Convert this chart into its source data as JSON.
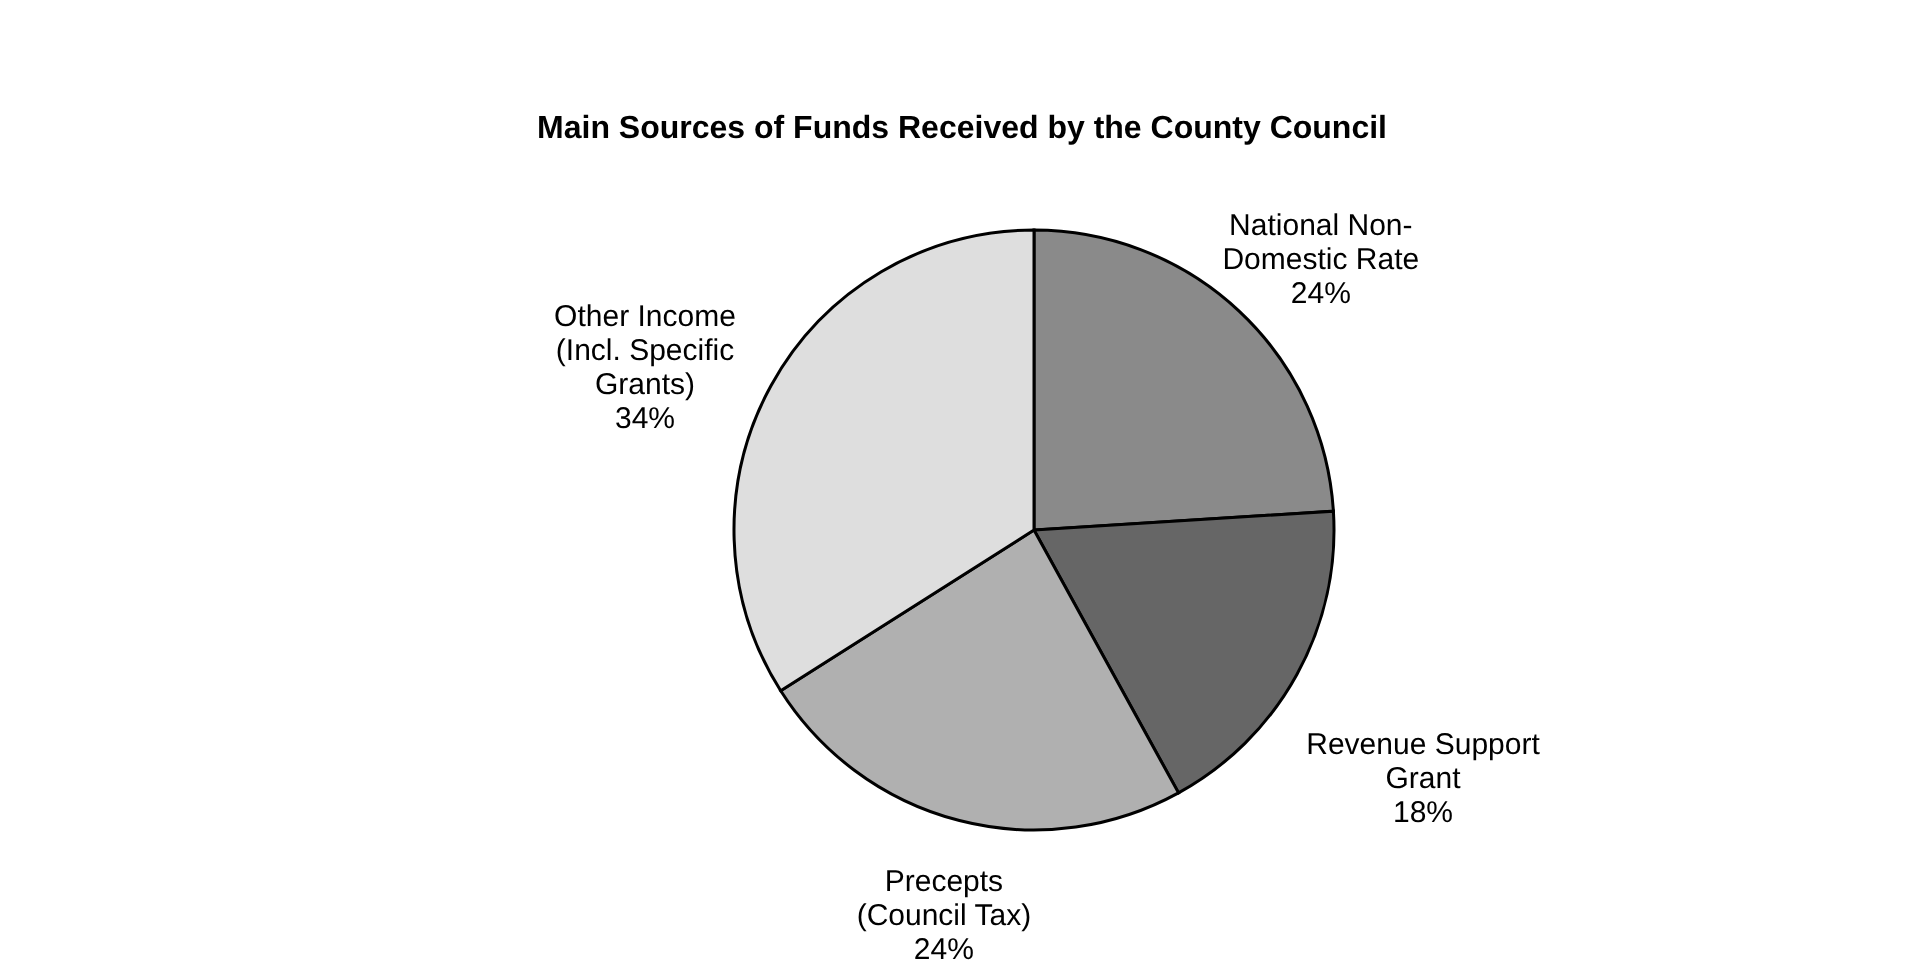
{
  "chart_data": {
    "type": "pie",
    "title": "Main Sources of Funds Received by the County Council",
    "categories": [
      "National Non-\nDomestic Rate",
      "Revenue Support\nGrant",
      "Precepts\n(Council Tax)",
      "Other Income\n(Incl. Specific\nGrants)"
    ],
    "values": [
      24,
      18,
      24,
      34
    ],
    "value_labels": [
      "24%",
      "18%",
      "24%",
      "34%"
    ],
    "colors": [
      "#8a8a8a",
      "#666666",
      "#b0b0b0",
      "#dedede"
    ]
  }
}
